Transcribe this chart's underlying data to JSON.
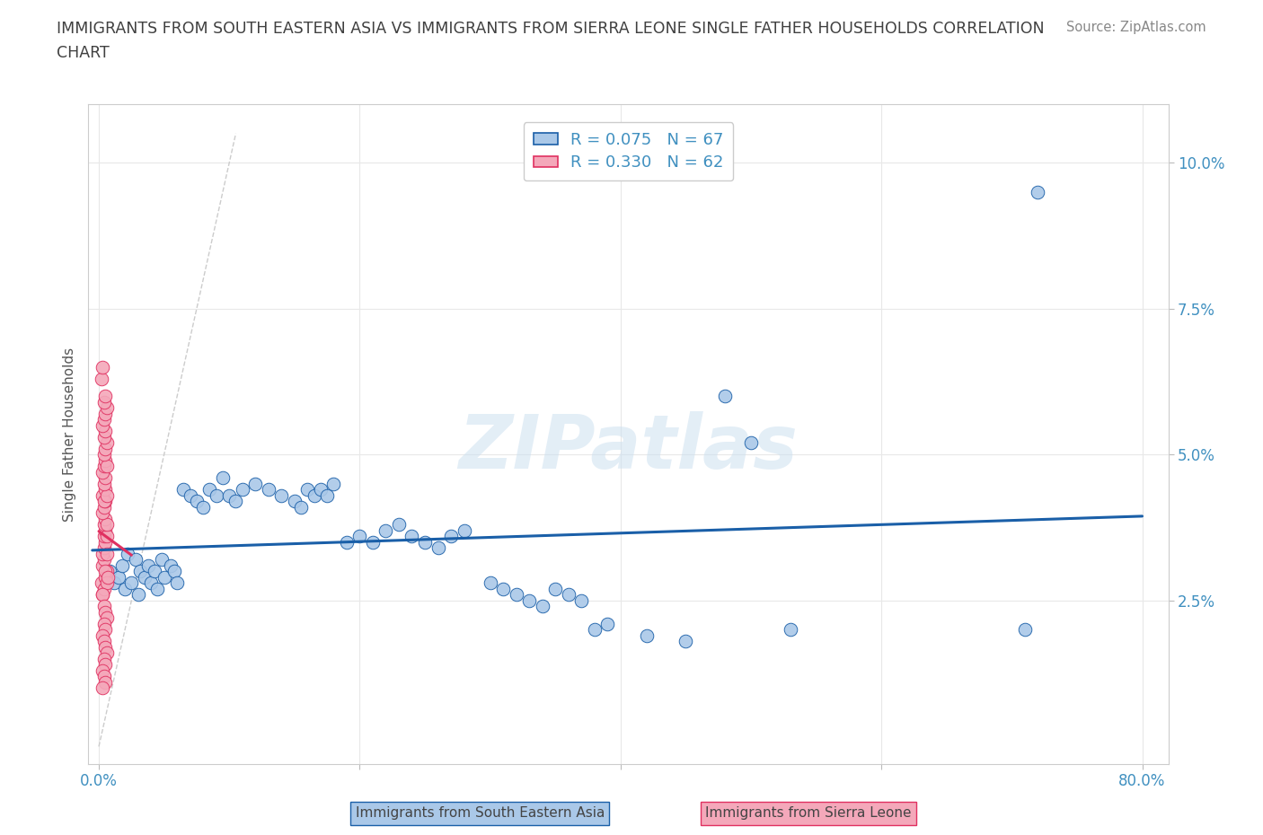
{
  "title": "IMMIGRANTS FROM SOUTH EASTERN ASIA VS IMMIGRANTS FROM SIERRA LEONE SINGLE FATHER HOUSEHOLDS CORRELATION\nCHART",
  "source": "Source: ZipAtlas.com",
  "ylabel": "Single Father Households",
  "legend_label1": "Immigrants from South Eastern Asia",
  "legend_label2": "Immigrants from Sierra Leone",
  "R1": 0.075,
  "N1": 67,
  "R2": 0.33,
  "N2": 62,
  "color1": "#aac8e8",
  "color2": "#f4a8ba",
  "line1_color": "#1a5fa8",
  "line2_color": "#e03060",
  "diag_color": "#cccccc",
  "watermark": "ZIPatlas",
  "background_color": "#ffffff",
  "grid_color": "#e8e8e8",
  "title_color": "#404040",
  "axis_color": "#4090c0",
  "se_asia_x": [
    0.008,
    0.012,
    0.015,
    0.018,
    0.02,
    0.022,
    0.025,
    0.028,
    0.03,
    0.032,
    0.035,
    0.038,
    0.04,
    0.043,
    0.045,
    0.048,
    0.05,
    0.055,
    0.058,
    0.06,
    0.065,
    0.07,
    0.075,
    0.08,
    0.085,
    0.09,
    0.095,
    0.1,
    0.105,
    0.11,
    0.12,
    0.13,
    0.14,
    0.15,
    0.155,
    0.16,
    0.165,
    0.17,
    0.175,
    0.18,
    0.19,
    0.2,
    0.21,
    0.22,
    0.23,
    0.24,
    0.25,
    0.26,
    0.27,
    0.28,
    0.3,
    0.31,
    0.32,
    0.33,
    0.34,
    0.35,
    0.36,
    0.37,
    0.38,
    0.39,
    0.42,
    0.45,
    0.48,
    0.5,
    0.53,
    0.71,
    0.72
  ],
  "se_asia_y": [
    0.03,
    0.028,
    0.029,
    0.031,
    0.027,
    0.033,
    0.028,
    0.032,
    0.026,
    0.03,
    0.029,
    0.031,
    0.028,
    0.03,
    0.027,
    0.032,
    0.029,
    0.031,
    0.03,
    0.028,
    0.044,
    0.043,
    0.042,
    0.041,
    0.044,
    0.043,
    0.046,
    0.043,
    0.042,
    0.044,
    0.045,
    0.044,
    0.043,
    0.042,
    0.041,
    0.044,
    0.043,
    0.044,
    0.043,
    0.045,
    0.035,
    0.036,
    0.035,
    0.037,
    0.038,
    0.036,
    0.035,
    0.034,
    0.036,
    0.037,
    0.028,
    0.027,
    0.026,
    0.025,
    0.024,
    0.027,
    0.026,
    0.025,
    0.02,
    0.021,
    0.019,
    0.018,
    0.06,
    0.052,
    0.02,
    0.02,
    0.095
  ],
  "sierra_leone_x": [
    0.002,
    0.003,
    0.004,
    0.005,
    0.006,
    0.003,
    0.004,
    0.005,
    0.006,
    0.007,
    0.003,
    0.004,
    0.005,
    0.006,
    0.004,
    0.005,
    0.006,
    0.004,
    0.005,
    0.006,
    0.003,
    0.004,
    0.005,
    0.003,
    0.004,
    0.005,
    0.006,
    0.004,
    0.005,
    0.003,
    0.004,
    0.005,
    0.006,
    0.004,
    0.005,
    0.006,
    0.004,
    0.005,
    0.003,
    0.004,
    0.005,
    0.006,
    0.004,
    0.005,
    0.003,
    0.004,
    0.005,
    0.006,
    0.004,
    0.005,
    0.003,
    0.004,
    0.005,
    0.006,
    0.004,
    0.005,
    0.003,
    0.004,
    0.005,
    0.003,
    0.002,
    0.003
  ],
  "sierra_leone_y": [
    0.028,
    0.026,
    0.027,
    0.029,
    0.03,
    0.031,
    0.032,
    0.03,
    0.028,
    0.029,
    0.033,
    0.034,
    0.035,
    0.033,
    0.036,
    0.037,
    0.036,
    0.038,
    0.039,
    0.038,
    0.04,
    0.041,
    0.042,
    0.043,
    0.042,
    0.044,
    0.043,
    0.045,
    0.046,
    0.047,
    0.048,
    0.049,
    0.048,
    0.05,
    0.051,
    0.052,
    0.053,
    0.054,
    0.055,
    0.056,
    0.057,
    0.058,
    0.059,
    0.06,
    0.026,
    0.024,
    0.023,
    0.022,
    0.021,
    0.02,
    0.019,
    0.018,
    0.017,
    0.016,
    0.015,
    0.014,
    0.013,
    0.012,
    0.011,
    0.01,
    0.063,
    0.065
  ],
  "xlim": [
    -0.008,
    0.82
  ],
  "ylim": [
    -0.003,
    0.11
  ],
  "x_ticks": [
    0.0,
    0.2,
    0.4,
    0.6,
    0.8
  ],
  "x_tick_labels": [
    "0.0%",
    "",
    "",
    "",
    "80.0%"
  ],
  "y_ticks": [
    0.025,
    0.05,
    0.075,
    0.1
  ],
  "y_tick_labels": [
    "2.5%",
    "5.0%",
    "7.5%",
    "10.0%"
  ]
}
